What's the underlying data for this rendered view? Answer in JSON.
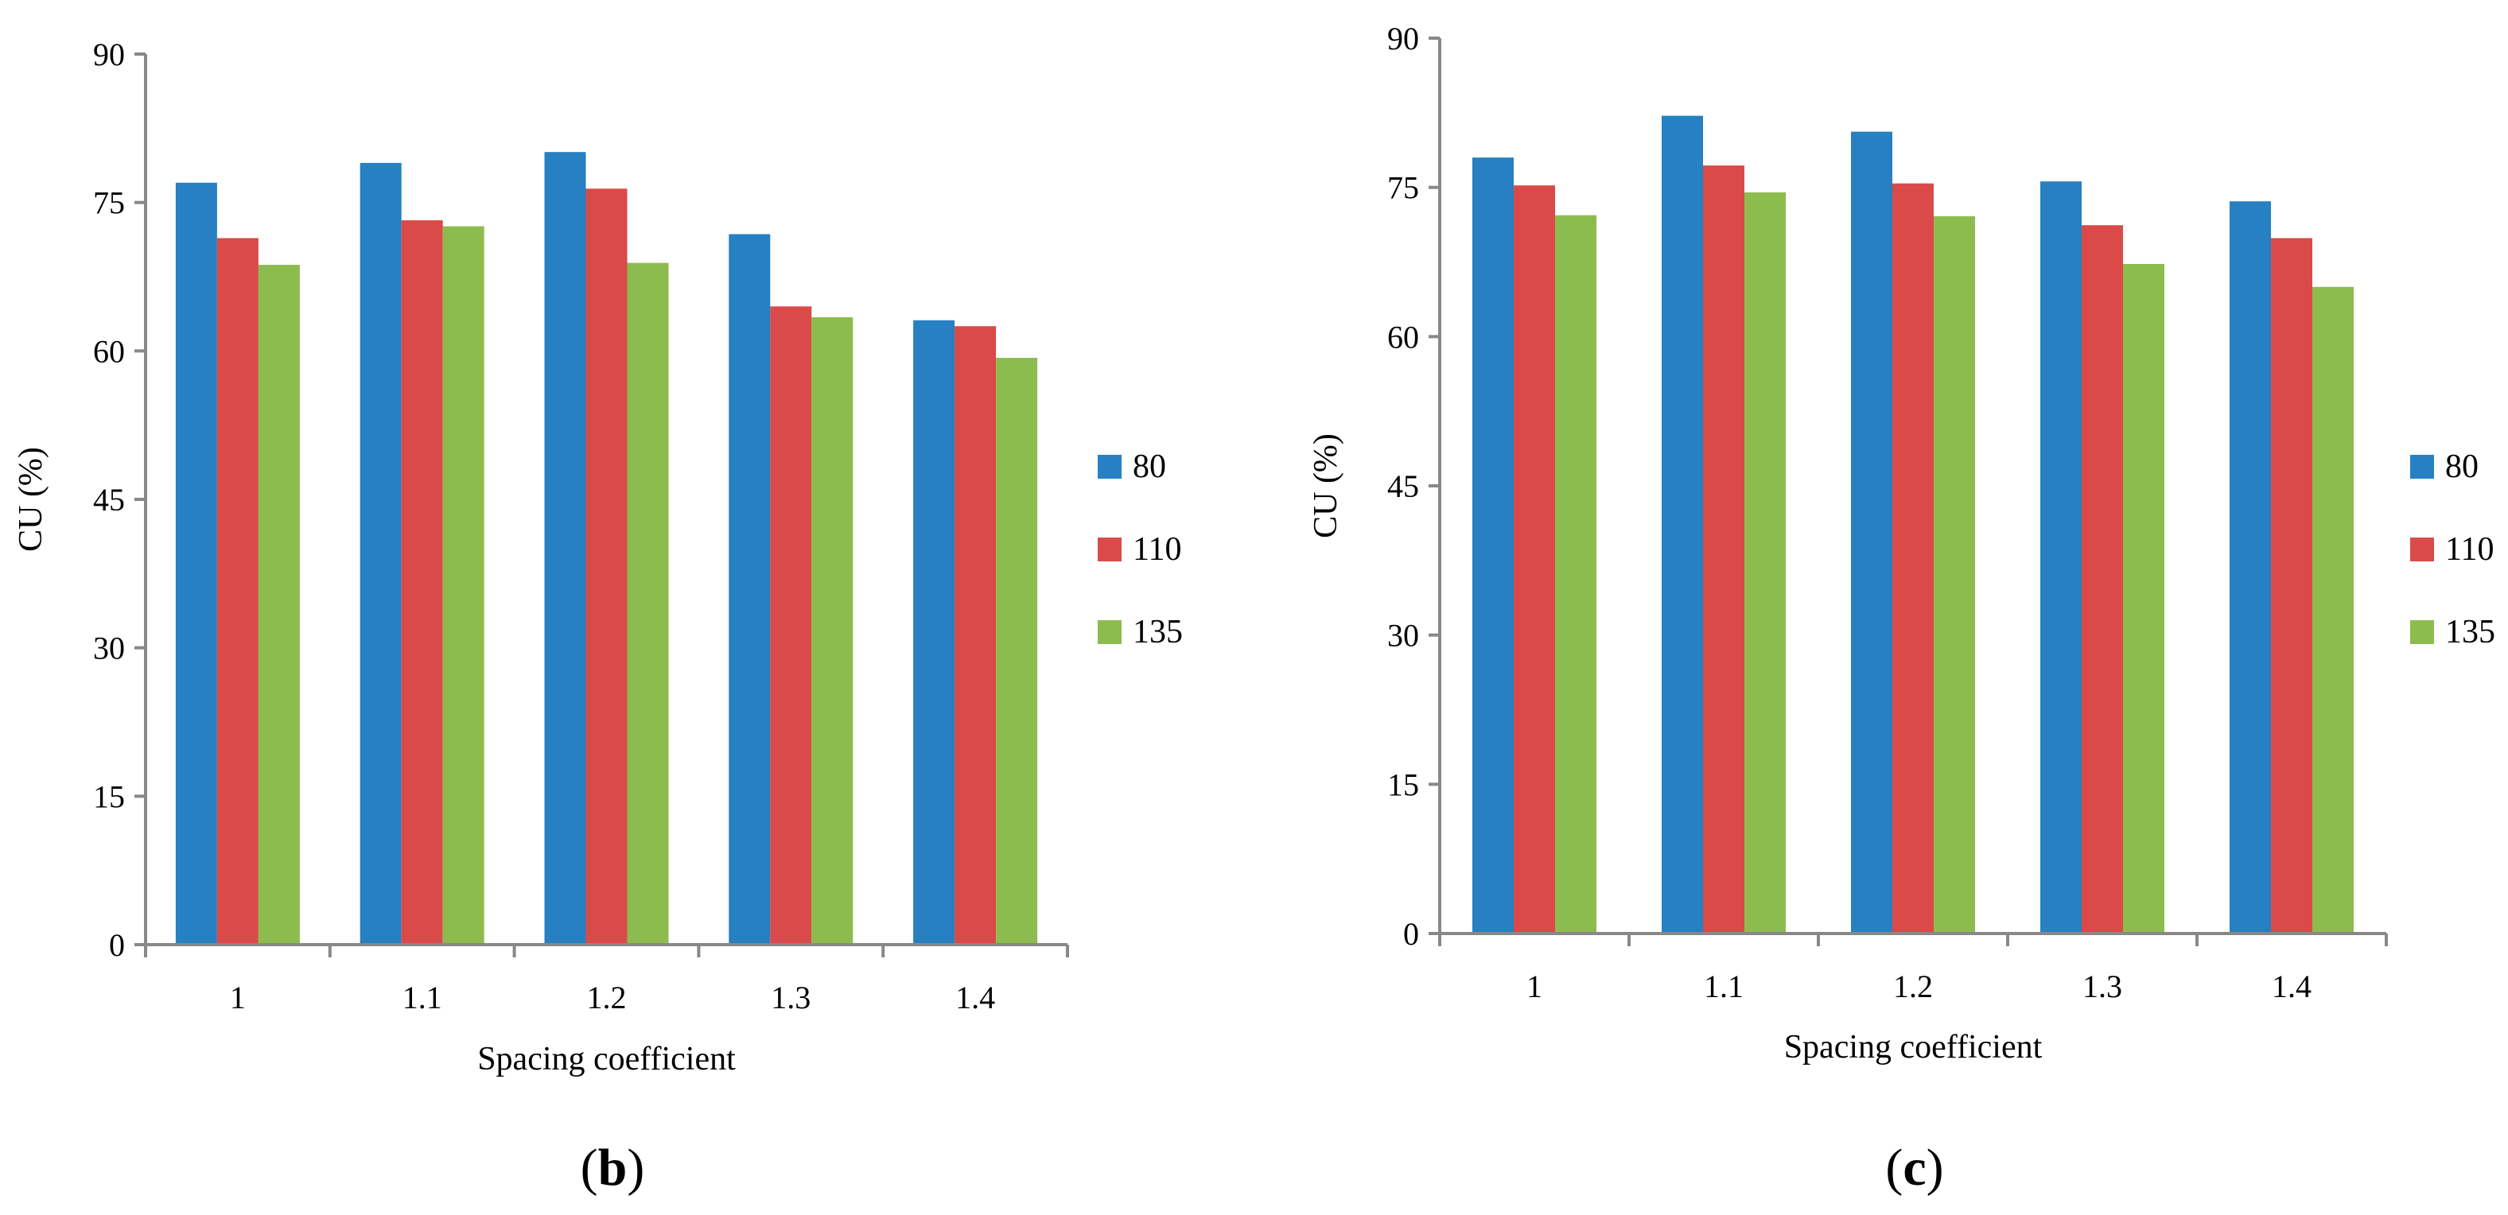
{
  "chart_data": [
    {
      "type": "bar",
      "panel_label": {
        "open": "(",
        "letter": "b",
        "close": ")"
      },
      "categories": [
        "1",
        "1.1",
        "1.2",
        "1.3",
        "1.4"
      ],
      "series": [
        {
          "name": "80",
          "color": "#2680C2",
          "values": [
            77.0,
            79.0,
            80.1,
            71.8,
            63.1
          ]
        },
        {
          "name": "110",
          "color": "#DA4A48",
          "values": [
            71.4,
            73.2,
            76.4,
            64.5,
            62.5
          ]
        },
        {
          "name": "135",
          "color": "#8DBC4E",
          "values": [
            68.7,
            72.6,
            68.9,
            63.4,
            59.3
          ]
        }
      ],
      "xlabel": "Spacing coefficient",
      "ylabel": "CU (%)",
      "ylim": [
        0,
        90
      ],
      "yticks": [
        "0",
        "15",
        "30",
        "45",
        "60",
        "75",
        "90"
      ],
      "legend": "right",
      "grid": false
    },
    {
      "type": "bar",
      "panel_label": {
        "open": "(",
        "letter": "c",
        "close": ")"
      },
      "categories": [
        "1",
        "1.1",
        "1.2",
        "1.3",
        "1.4"
      ],
      "series": [
        {
          "name": "80",
          "color": "#2680C2",
          "values": [
            78.0,
            82.2,
            80.6,
            75.6,
            73.6
          ]
        },
        {
          "name": "110",
          "color": "#DA4A48",
          "values": [
            75.2,
            77.2,
            75.4,
            71.2,
            69.9
          ]
        },
        {
          "name": "135",
          "color": "#8DBC4E",
          "values": [
            72.2,
            74.5,
            72.1,
            67.3,
            65.0
          ]
        }
      ],
      "xlabel": "Spacing coefficient",
      "ylabel": "CU (%)",
      "ylim": [
        0,
        90
      ],
      "yticks": [
        "0",
        "15",
        "30",
        "45",
        "60",
        "75",
        "90"
      ],
      "legend": "right",
      "grid": false
    }
  ]
}
